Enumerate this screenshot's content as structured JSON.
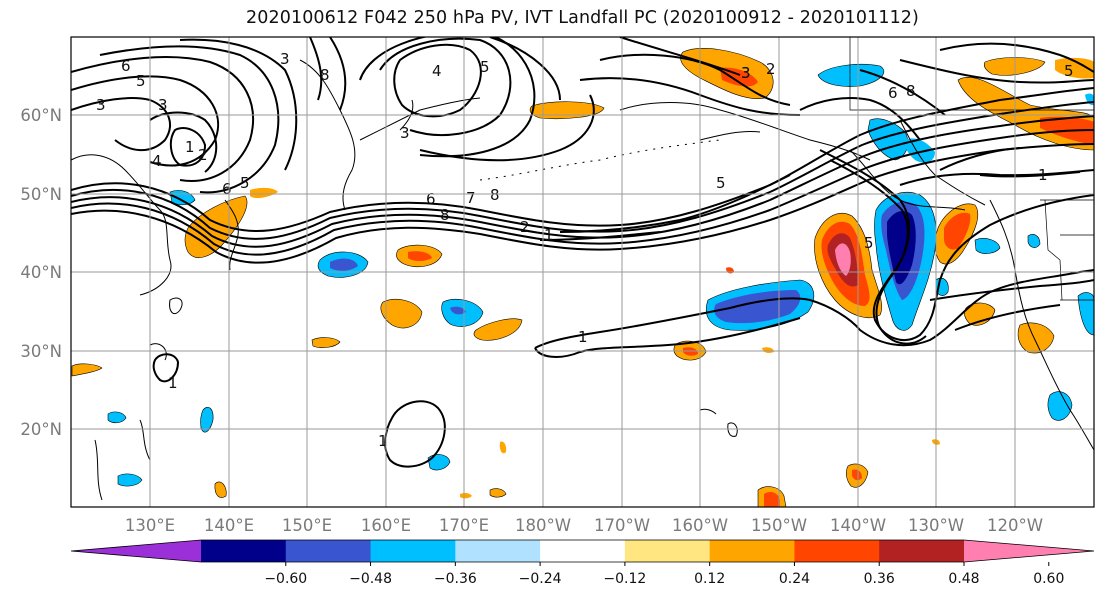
{
  "title": "2020100612 F042 250 hPa PV, IVT Landfall PC (2020100912 - 2020101112)",
  "lat_labels": [
    "60°N",
    "50°N",
    "40°N",
    "30°N",
    "20°N"
  ],
  "lon_labels": [
    "130°E",
    "140°E",
    "150°E",
    "160°E",
    "170°E",
    "180°W",
    "170°W",
    "160°W",
    "150°W",
    "140°W",
    "130°W",
    "120°W"
  ],
  "colorbar": {
    "colors": [
      "#9b30d9",
      "#00008b",
      "#3a55d0",
      "#00bfff",
      "#b0e2ff",
      "#ffffff",
      "#ffe680",
      "#ffa500",
      "#ff4500",
      "#b22222",
      "#ff80b0"
    ],
    "tick_labels": [
      "−0.60",
      "−0.48",
      "−0.36",
      "−0.24",
      "−0.12",
      "0.12",
      "0.24",
      "0.36",
      "0.48",
      "0.60"
    ]
  },
  "contour_labels": [
    "6",
    "5",
    "3",
    "3",
    "1",
    "2",
    "4",
    "6",
    "5",
    "8",
    "3",
    "4",
    "5",
    "3",
    "8",
    "6",
    "7",
    "8",
    "3",
    "2",
    "1",
    "5",
    "3",
    "2",
    "5",
    "6",
    "8",
    "1",
    "1",
    "1",
    "1",
    "5"
  ],
  "colors": {
    "land": "#000000",
    "grid": "#9a9a9a",
    "contour": "#000000"
  }
}
